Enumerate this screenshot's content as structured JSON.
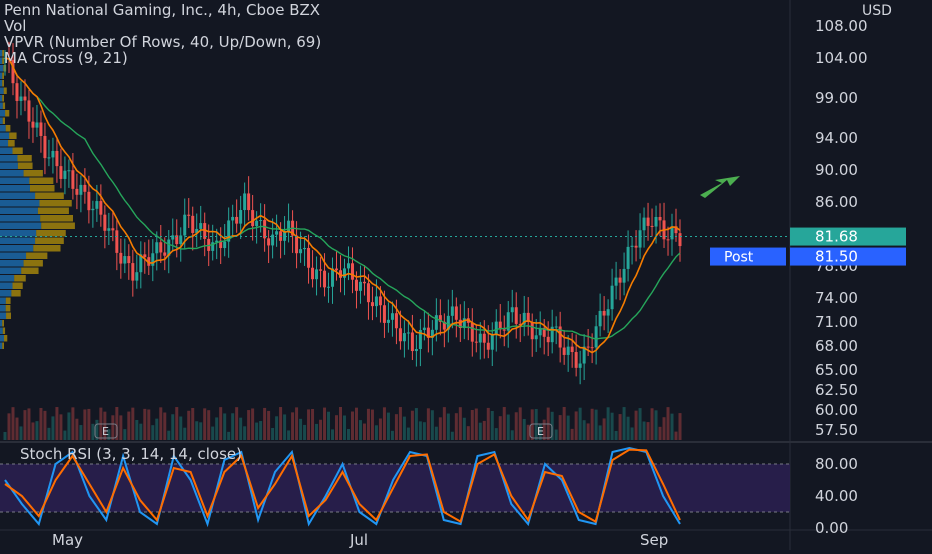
{
  "header": {
    "title": "Penn National Gaming, Inc., 4h, Cboe BZX",
    "vol_label": "Vol",
    "vpvr_label": "VPVR (Number Of Rows, 40, Up/Down, 69)",
    "ma_label": "MA Cross (9, 21)"
  },
  "price_axis": {
    "currency": "USD",
    "ticks": [
      "108.00",
      "104.00",
      "99.00",
      "94.00",
      "90.00",
      "86.00",
      "78.00",
      "74.00",
      "71.00",
      "68.00",
      "65.00",
      "62.50",
      "60.00",
      "57.50"
    ],
    "last_price": "81.68",
    "post_label": "Post",
    "post_price": "81.50"
  },
  "stoch_axis": {
    "ticks": [
      "80.00",
      "40.00",
      "0.00"
    ]
  },
  "stoch_legend": "Stoch RSI (3, 3, 14, 14, close)",
  "time_axis": {
    "labels": [
      "May",
      "Jul",
      "Sep"
    ]
  },
  "earnings_marker": "E",
  "colors": {
    "background": "#131722",
    "up": "#26a69a",
    "down": "#ef5350",
    "ma_fast": "#f57c00",
    "ma_slow": "#26a65b",
    "stoch_k": "#2196f3",
    "stoch_d": "#ff6d00",
    "stoch_band": "#2a1f4f",
    "vpvr_up": "#2196f3",
    "vpvr_down": "#f0c000",
    "last_price_bg": "#26a69a",
    "post_bg": "#2962ff",
    "arrow": "#4caf50"
  },
  "chart_data": [
    {
      "type": "candlestick",
      "title": "Penn National Gaming, Inc., 4h, Cboe BZX",
      "y_unit": "USD",
      "ylim": [
        55,
        110
      ],
      "x": [
        "May",
        "Jul",
        "Sep"
      ],
      "approx_close_path": [
        104,
        99,
        96,
        92,
        90,
        88,
        86,
        84,
        80,
        77,
        79,
        80,
        81,
        84,
        82,
        80,
        83,
        86,
        83,
        81,
        83,
        80,
        77,
        76,
        78,
        76,
        74,
        72,
        70,
        68,
        70,
        71,
        72,
        70,
        68,
        70,
        72,
        71,
        69,
        70,
        67,
        66,
        70,
        74,
        78,
        82,
        84,
        82,
        81.68
      ],
      "last": 81.68,
      "post_market": 81.5
    },
    {
      "type": "line",
      "title": "Stoch RSI (3, 3, 14, 14, close)",
      "ylim": [
        0,
        100
      ],
      "series": [
        {
          "name": "K",
          "values": [
            60,
            30,
            5,
            80,
            95,
            40,
            10,
            90,
            20,
            5,
            90,
            60,
            5,
            85,
            95,
            10,
            70,
            95,
            5,
            40,
            80,
            20,
            5,
            60,
            95,
            90,
            10,
            5,
            90,
            95,
            30,
            5,
            80,
            60,
            10,
            5,
            95,
            100,
            95,
            40,
            5
          ]
        },
        {
          "name": "D",
          "values": [
            55,
            40,
            15,
            60,
            90,
            55,
            20,
            75,
            35,
            10,
            75,
            70,
            15,
            70,
            90,
            25,
            55,
            90,
            15,
            35,
            70,
            30,
            10,
            50,
            90,
            92,
            20,
            8,
            80,
            92,
            40,
            10,
            70,
            65,
            20,
            8,
            85,
            98,
            97,
            55,
            10
          ]
        }
      ],
      "bands": [
        20,
        80
      ]
    }
  ]
}
